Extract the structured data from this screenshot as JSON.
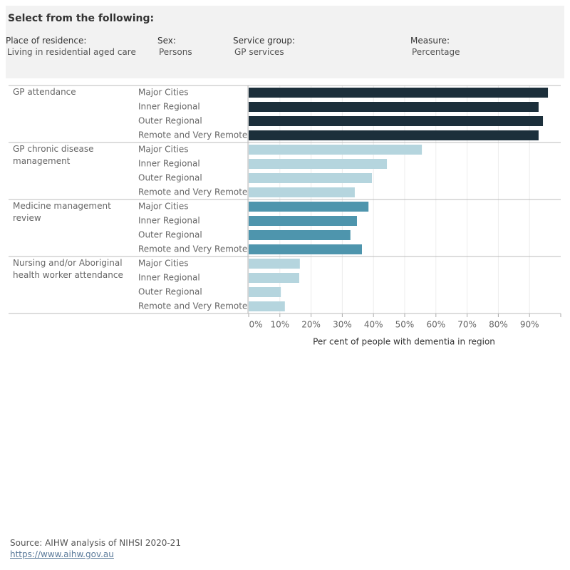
{
  "filters": {
    "title": "Select from the following:",
    "items": [
      {
        "label": "Place of residence:",
        "value": "Living in residential aged care"
      },
      {
        "label": "Sex:",
        "value": "Persons"
      },
      {
        "label": "Service group:",
        "value": "GP services"
      },
      {
        "label": "Measure:",
        "value": "Percentage"
      }
    ]
  },
  "chart_data": {
    "type": "bar",
    "orientation": "horizontal",
    "categories": [
      "Major Cities",
      "Inner Regional",
      "Outer Regional",
      "Remote and Very Remote"
    ],
    "series": [
      {
        "name": "GP attendance",
        "color": "#1c2f3b",
        "values": [
          95.9,
          92.9,
          94.3,
          92.9
        ]
      },
      {
        "name": "GP chronic disease management",
        "color": "#b5d5de",
        "values": [
          55.5,
          44.3,
          39.5,
          34.0
        ]
      },
      {
        "name": "Medicine management review",
        "color": "#4e95ad",
        "values": [
          38.4,
          34.7,
          32.6,
          36.3
        ]
      },
      {
        "name": "Nursing and/or Aboriginal health worker attendance",
        "color": "#b5d5de",
        "values": [
          16.4,
          16.2,
          10.3,
          11.6
        ]
      }
    ],
    "xlim": [
      0,
      100
    ],
    "xticks": [
      {
        "value": 0,
        "label": "0%"
      },
      {
        "value": 10,
        "label": "10%"
      },
      {
        "value": 20,
        "label": "20%"
      },
      {
        "value": 30,
        "label": "30%"
      },
      {
        "value": 40,
        "label": "40%"
      },
      {
        "value": 50,
        "label": "50%"
      },
      {
        "value": 60,
        "label": "60%"
      },
      {
        "value": 70,
        "label": "70%"
      },
      {
        "value": 80,
        "label": "80%"
      },
      {
        "value": 90,
        "label": "90%"
      }
    ],
    "xlabel": "Per cent of people with dementia in region",
    "grid": true
  },
  "source": {
    "text": "Source: AIHW analysis of NIHSI 2020-21",
    "link": "https://www.aihw.gov.au"
  }
}
